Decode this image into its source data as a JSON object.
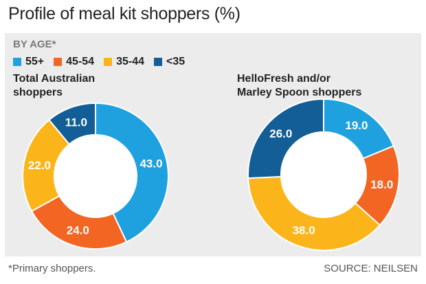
{
  "title": "Profile of meal kit shoppers (%)",
  "section_label": "BY AGE*",
  "legend": [
    {
      "label": "55+",
      "color": "#1fa0df"
    },
    {
      "label": "45-54",
      "color": "#f26522"
    },
    {
      "label": "35-44",
      "color": "#fbb51b"
    },
    {
      "label": "<35",
      "color": "#135e96"
    }
  ],
  "footnote": "*Primary shoppers.",
  "source": "SOURCE: NEILSEN",
  "chart_data": [
    {
      "type": "pie",
      "title_lines": [
        "Total Australian",
        "shoppers"
      ],
      "categories": [
        "55+",
        "45-54",
        "35-44",
        "<35"
      ],
      "values": [
        43.0,
        24.0,
        22.0,
        11.0
      ],
      "labels": [
        "43.0",
        "24.0",
        "22.0",
        "11.0"
      ]
    },
    {
      "type": "pie",
      "title_lines": [
        "HelloFresh and/or",
        "Marley Spoon shoppers"
      ],
      "categories": [
        "55+",
        "45-54",
        "35-44",
        "<35"
      ],
      "values": [
        19.0,
        18.0,
        38.0,
        26.0
      ],
      "labels": [
        "19.0",
        "18.0",
        "38.0",
        "26.0"
      ]
    }
  ]
}
